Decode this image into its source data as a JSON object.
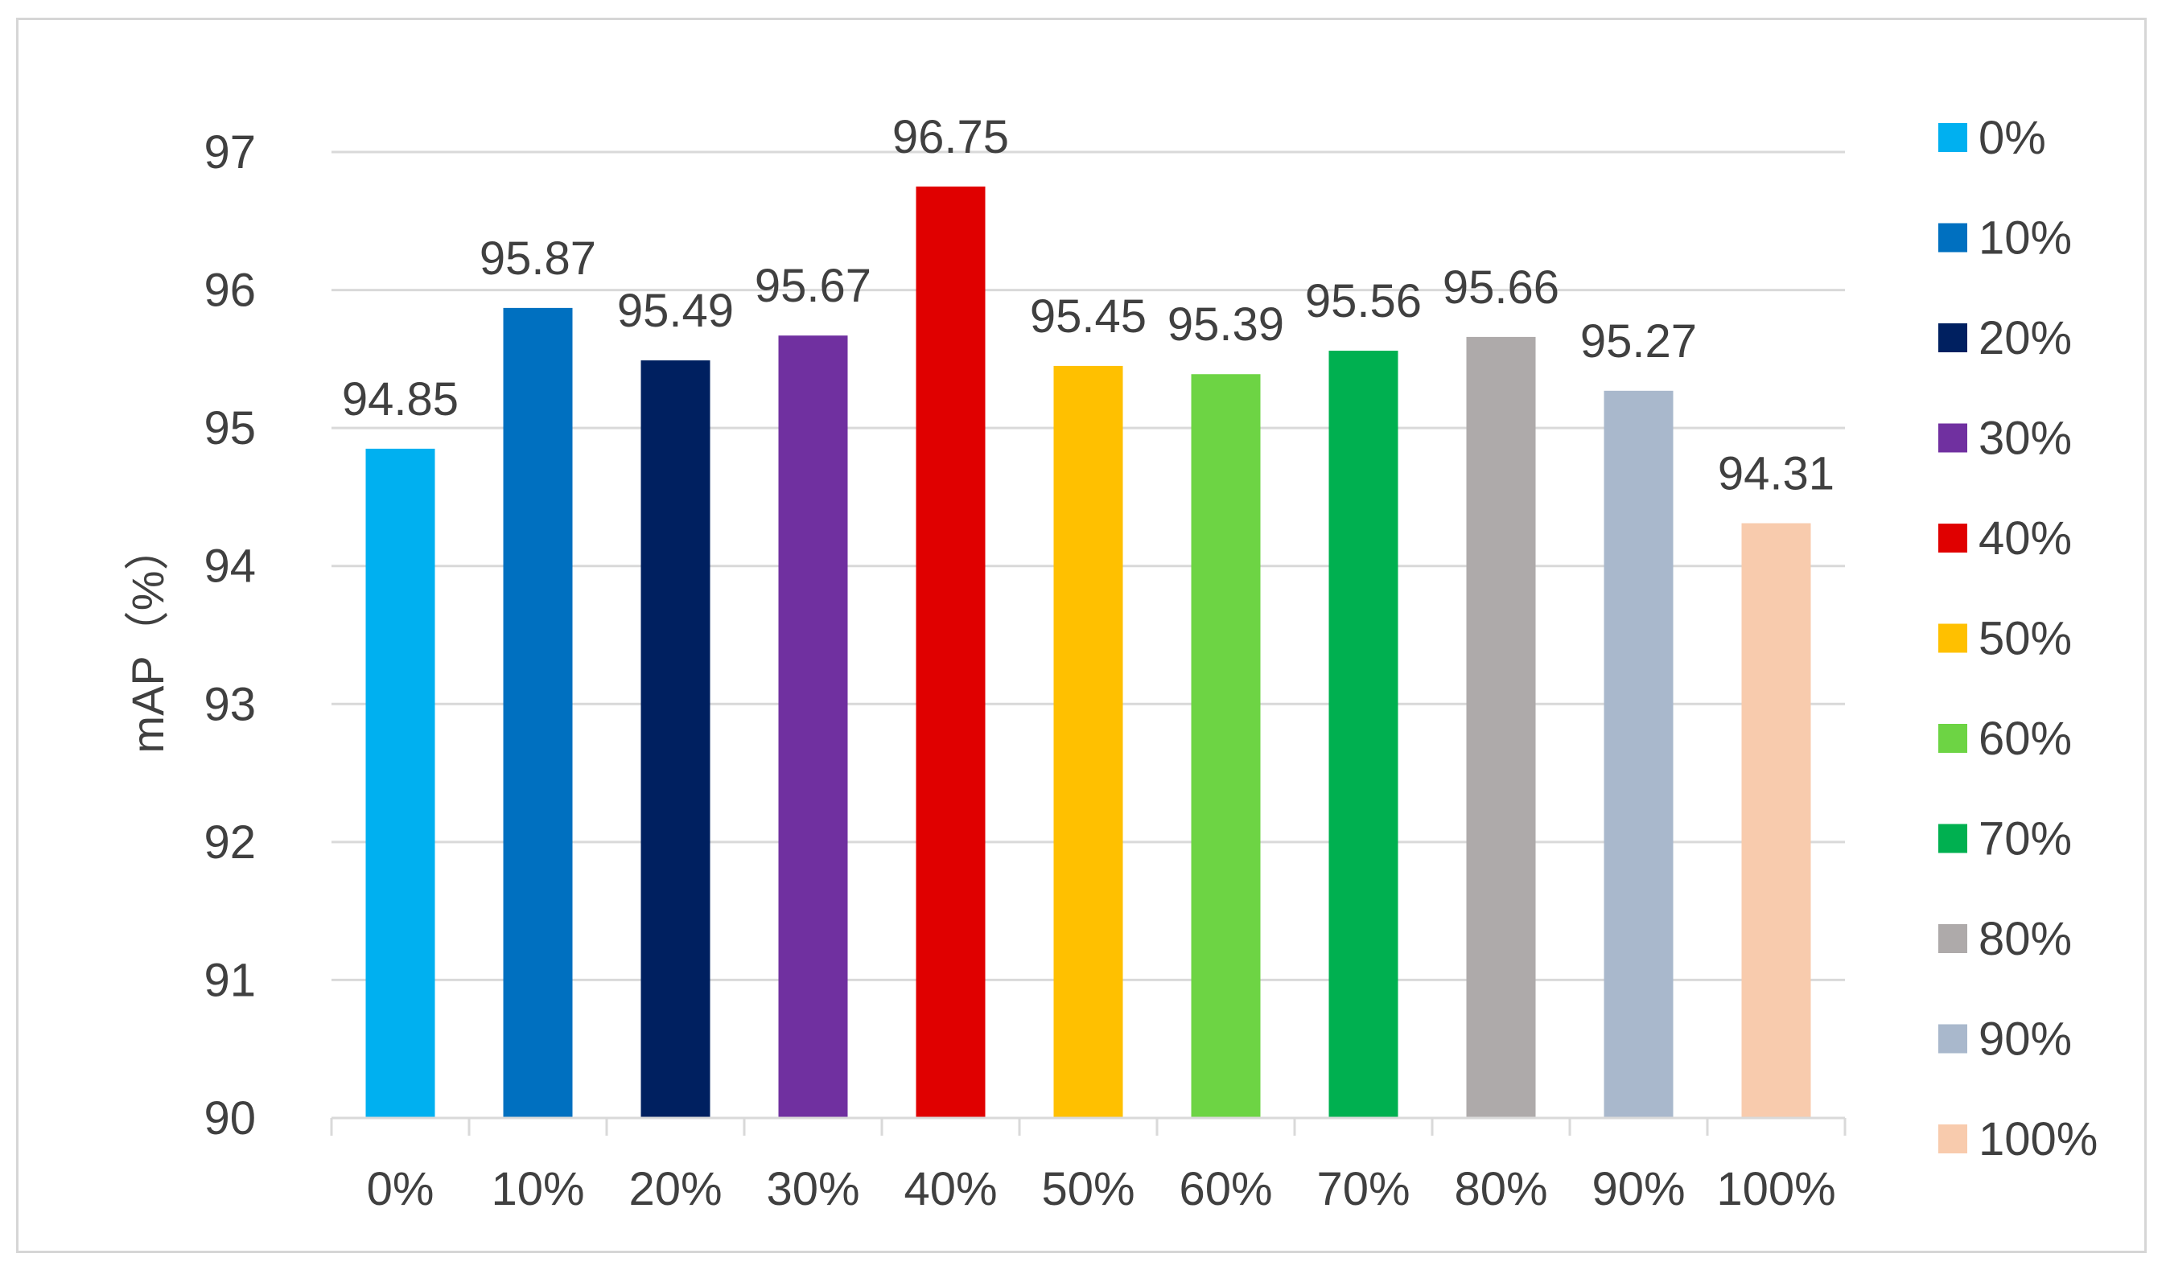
{
  "chart_data": {
    "type": "bar",
    "categories": [
      "0%",
      "10%",
      "20%",
      "30%",
      "40%",
      "50%",
      "60%",
      "70%",
      "80%",
      "90%",
      "100%"
    ],
    "values": [
      94.85,
      95.87,
      95.49,
      95.67,
      96.75,
      95.45,
      95.39,
      95.56,
      95.66,
      95.27,
      94.31
    ],
    "data_labels": [
      "94.85",
      "95.87",
      "95.49",
      "95.67",
      "96.75",
      "95.45",
      "95.39",
      "95.56",
      "95.66",
      "95.27",
      "94.31"
    ],
    "colors": [
      "#00b0f0",
      "#0070c0",
      "#002060",
      "#7030a0",
      "#e00000",
      "#ffc000",
      "#6dd444",
      "#00b050",
      "#aeaaaa",
      "#a9b8cc",
      "#f8cbad"
    ],
    "title": "",
    "xlabel": "",
    "ylabel": "mAP（%）",
    "ylim": [
      90,
      97
    ],
    "yticks": [
      "90",
      "91",
      "92",
      "93",
      "94",
      "95",
      "96",
      "97"
    ],
    "grid": true,
    "legend": {
      "placement": "right",
      "entries": [
        "0%",
        "10%",
        "20%",
        "30%",
        "40%",
        "50%",
        "60%",
        "70%",
        "80%",
        "90%",
        "100%"
      ]
    }
  }
}
